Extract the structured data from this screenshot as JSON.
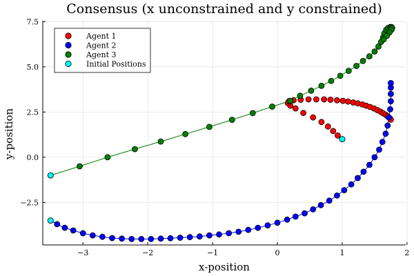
{
  "chart_data": {
    "type": "scatter",
    "title": "Consensus (x unconstrained and y constrained)",
    "xlabel": "x-position",
    "ylabel": "y-position",
    "xlim": [
      -3.62,
      1.98
    ],
    "ylim": [
      -4.85,
      7.55
    ],
    "xticks": [
      -3,
      -2,
      -1,
      0,
      1,
      2
    ],
    "yticks": [
      -2.5,
      0.0,
      2.5,
      5.0,
      7.5
    ],
    "grid": true,
    "legend_position": "top-left",
    "series": [
      {
        "name": "Agent 1",
        "color": "#ff0000",
        "line": false,
        "x": [
          1.0,
          0.93,
          0.86,
          0.78,
          0.68,
          0.55,
          0.4,
          0.28,
          0.2,
          0.16,
          0.18,
          0.25,
          0.36,
          0.48,
          0.6,
          0.72,
          0.82,
          0.92,
          1.01,
          1.09,
          1.17,
          1.24,
          1.31,
          1.37,
          1.43,
          1.49,
          1.54,
          1.59,
          1.63,
          1.67,
          1.7,
          1.72,
          1.74,
          1.75
        ],
        "y": [
          1.0,
          1.2,
          1.45,
          1.7,
          1.95,
          2.2,
          2.45,
          2.7,
          2.85,
          3.0,
          3.1,
          3.15,
          3.18,
          3.2,
          3.2,
          3.2,
          3.18,
          3.15,
          3.12,
          3.08,
          3.03,
          2.98,
          2.92,
          2.85,
          2.78,
          2.7,
          2.61,
          2.52,
          2.43,
          2.35,
          2.27,
          2.2,
          2.13,
          2.08
        ]
      },
      {
        "name": "Agent 2",
        "color": "#0000ff",
        "line": true,
        "x": [
          -3.5,
          -3.4,
          -3.28,
          -3.15,
          -3.0,
          -2.85,
          -2.7,
          -2.55,
          -2.4,
          -2.25,
          -2.1,
          -1.95,
          -1.8,
          -1.65,
          -1.5,
          -1.35,
          -1.2,
          -1.05,
          -0.9,
          -0.75,
          -0.6,
          -0.45,
          -0.3,
          -0.15,
          0.0,
          0.15,
          0.28,
          0.42,
          0.55,
          0.67,
          0.8,
          0.92,
          1.03,
          1.14,
          1.24,
          1.33,
          1.42,
          1.5,
          1.57,
          1.62,
          1.67,
          1.7,
          1.72,
          1.74,
          1.75,
          1.75,
          1.75,
          1.75
        ],
        "y": [
          -3.5,
          -3.7,
          -3.9,
          -4.05,
          -4.2,
          -4.32,
          -4.4,
          -4.47,
          -4.5,
          -4.52,
          -4.52,
          -4.52,
          -4.5,
          -4.48,
          -4.45,
          -4.42,
          -4.38,
          -4.32,
          -4.27,
          -4.2,
          -4.12,
          -4.02,
          -3.9,
          -3.77,
          -3.62,
          -3.45,
          -3.28,
          -3.1,
          -2.88,
          -2.65,
          -2.4,
          -2.12,
          -1.82,
          -1.5,
          -1.15,
          -0.8,
          -0.42,
          0.0,
          0.42,
          0.85,
          1.3,
          1.75,
          2.2,
          2.65,
          3.1,
          3.5,
          3.85,
          4.1
        ]
      },
      {
        "name": "Agent 3",
        "color": "#008000",
        "line": true,
        "x": [
          -3.5,
          -3.05,
          -2.62,
          -2.2,
          -1.8,
          -1.42,
          -1.05,
          -0.7,
          -0.38,
          -0.08,
          0.2,
          0.35,
          0.52,
          0.68,
          0.83,
          0.97,
          1.1,
          1.22,
          1.32,
          1.42,
          1.5,
          1.56,
          1.6,
          1.63,
          1.65,
          1.68,
          1.71,
          1.74,
          1.76,
          1.77,
          1.76,
          1.73,
          1.69,
          1.64
        ],
        "y": [
          -1.0,
          -0.5,
          0.0,
          0.45,
          0.87,
          1.28,
          1.68,
          2.07,
          2.44,
          2.8,
          3.12,
          3.4,
          3.68,
          3.95,
          4.22,
          4.5,
          4.78,
          5.05,
          5.32,
          5.58,
          5.85,
          6.12,
          6.38,
          6.62,
          6.85,
          7.05,
          7.15,
          7.2,
          7.2,
          7.15,
          7.05,
          6.9,
          6.72,
          6.52
        ]
      },
      {
        "name": "Initial Positions",
        "color": "#00ffff",
        "line": false,
        "x": [
          1.0,
          -3.5,
          -3.5
        ],
        "y": [
          1.0,
          -3.5,
          -1.0
        ]
      }
    ]
  }
}
